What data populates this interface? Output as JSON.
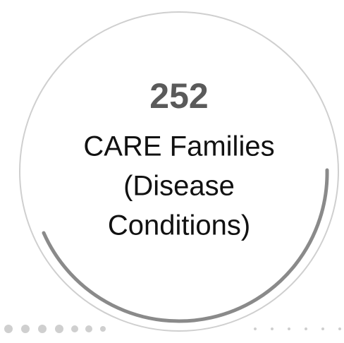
{
  "stat": {
    "value": 252,
    "label": [
      "CARE Families",
      "(Disease",
      "Conditions)"
    ]
  }
}
